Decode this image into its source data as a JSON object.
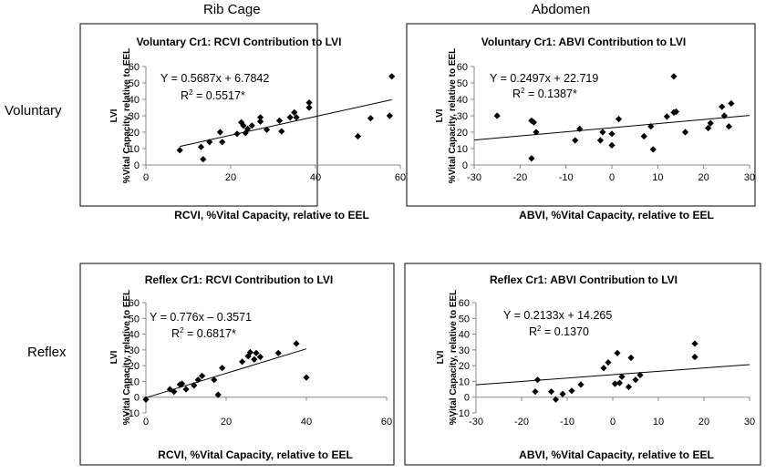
{
  "column_headers": [
    "Rib Cage",
    "Abdomen"
  ],
  "row_headers": [
    "Voluntary",
    "Reflex"
  ],
  "chart_data": [
    {
      "type": "scatter",
      "title": "Voluntary Cr1: RCVI Contribution to LVI",
      "xlabel": "RCVI, %Vital Capacity, relative to EEL",
      "ylabel_top": "LVI",
      "ylabel": "%Vital Capacity,  relative to EEL",
      "xlim": [
        0,
        60
      ],
      "ylim": [
        0,
        60
      ],
      "xticks": [
        0,
        20,
        40,
        60
      ],
      "yticks": [
        0,
        10,
        20,
        30,
        40,
        50,
        60
      ],
      "x": [
        8,
        13,
        13.5,
        15,
        17.5,
        18,
        21.5,
        22.5,
        23,
        23.5,
        24,
        25,
        27,
        27,
        28.5,
        31.5,
        32,
        34,
        35,
        35.5,
        38.5,
        38.5,
        50,
        53,
        57.5,
        58
      ],
      "y": [
        9,
        11,
        3.5,
        14,
        20,
        14,
        19,
        26,
        24,
        19.5,
        22,
        24,
        26.5,
        29,
        21.5,
        27,
        20.5,
        29,
        32,
        29,
        35,
        38,
        17.5,
        28.5,
        30,
        54
      ],
      "trendline": {
        "slope": 0.5687,
        "intercept": 6.7842
      },
      "equation": "Y = 0.5687x + 6.7842",
      "r2_label": "R",
      "r2_sup": "2",
      "r2_value": " = 0.5517*"
    },
    {
      "type": "scatter",
      "title": "Voluntary Cr1: ABVI Contribution to LVI",
      "xlabel": "ABVI, %Vital Capacity, relative to EEL",
      "ylabel_top": "LVI",
      "ylabel": "%Vital Capacity,  relative to EEL",
      "xlim": [
        -30,
        30
      ],
      "ylim": [
        0,
        60
      ],
      "xticks": [
        -30,
        -20,
        -10,
        0,
        10,
        20,
        30
      ],
      "yticks": [
        0,
        10,
        20,
        30,
        40,
        50,
        60
      ],
      "x": [
        -25,
        -17.5,
        -17,
        -17.5,
        -16.5,
        -8,
        -7,
        -2.5,
        -2,
        0,
        0,
        1.5,
        7,
        8.5,
        9,
        12,
        13.5,
        13.5,
        14,
        16,
        21,
        21.5,
        24,
        24.5,
        25.5,
        26
      ],
      "y": [
        30,
        27,
        26,
        4,
        20,
        15,
        22,
        15,
        20,
        12,
        19,
        28,
        17.5,
        23.5,
        9.5,
        29.5,
        32,
        54,
        32.5,
        20,
        22.5,
        25.5,
        35.5,
        30,
        23.5,
        37.5
      ],
      "trendline": {
        "slope": 0.2497,
        "intercept": 22.719
      },
      "equation": "Y = 0.2497x + 22.719",
      "r2_label": "R",
      "r2_sup": "2",
      "r2_value": " = 0.1387*"
    },
    {
      "type": "scatter",
      "title": "Reflex Cr1: RCVI Contribution to LVI",
      "xlabel": "RCVI, %Vital Capacity, relative to EEL",
      "ylabel_top": "LVI",
      "ylabel": "%Vital Capacity,  relative to EEL",
      "xlim": [
        0,
        60
      ],
      "ylim": [
        -10,
        60
      ],
      "xticks": [
        0,
        20,
        40,
        60
      ],
      "yticks": [
        -10,
        0,
        10,
        20,
        30,
        40,
        50,
        60
      ],
      "x": [
        0,
        6,
        7,
        8.5,
        9,
        10,
        12,
        13,
        14,
        17,
        18,
        19,
        24,
        25.5,
        26,
        27,
        27.5,
        28.5,
        33,
        37.5,
        40
      ],
      "y": [
        -1.5,
        5,
        3.5,
        8,
        8.5,
        5,
        7.5,
        11,
        13.5,
        11,
        1.5,
        18.5,
        22.5,
        26,
        28.5,
        24,
        28,
        25.5,
        28,
        34,
        12.5
      ],
      "trendline": {
        "slope": 0.776,
        "intercept": -0.3571
      },
      "equation": "Y = 0.776x – 0.3571",
      "r2_label": "R",
      "r2_sup": "2",
      "r2_value": " = 0.6817*"
    },
    {
      "type": "scatter",
      "title": "Reflex Cr1: ABVI Contribution to LVI",
      "xlabel": "ABVI, %Vital Capacity, relative to EEL",
      "ylabel_top": "LVI",
      "ylabel": "%Vital Capacity,  relative to EEL",
      "xlim": [
        -30,
        30
      ],
      "ylim": [
        -10,
        60
      ],
      "xticks": [
        -30,
        -20,
        -10,
        0,
        10,
        20,
        30
      ],
      "yticks": [
        -10,
        0,
        10,
        20,
        30,
        40,
        50,
        60
      ],
      "x": [
        -17,
        -16.5,
        -13.5,
        -12.5,
        -11,
        -9,
        -7,
        -2,
        -1,
        0.5,
        1,
        1.5,
        2,
        3.5,
        4,
        5,
        6,
        18,
        18
      ],
      "y": [
        3.5,
        11,
        3.5,
        -1.5,
        2,
        4,
        8,
        18.5,
        22,
        8.5,
        28,
        9,
        13,
        6.5,
        25,
        11,
        14,
        34,
        25.5
      ],
      "trendline": {
        "slope": 0.2133,
        "intercept": 14.265
      },
      "equation": "Y = 0.2133x + 14.265",
      "r2_label": "R",
      "r2_sup": "2",
      "r2_value": " = 0.1370"
    }
  ]
}
